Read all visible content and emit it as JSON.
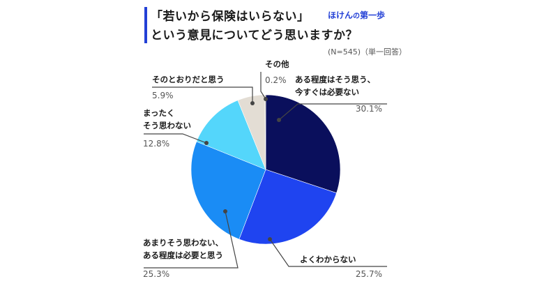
{
  "title": {
    "line1": "「若いから保険はいらない」",
    "line2": "という意見についてどう思いますか？"
  },
  "brand": {
    "name_a": "ほけん",
    "name_no": "の",
    "name_b": "第一歩"
  },
  "note": "(N=545)（単一回答）",
  "colors": {
    "accent": "#2340d6",
    "leader": "#444444"
  },
  "chart_data": {
    "type": "pie",
    "start": "12 o'clock",
    "direction": "clockwise",
    "slices": [
      {
        "label_lines": [
          "ある程度はそう思う、",
          "今すぐは必要ない"
        ],
        "value": 30.1,
        "value_text": "30.1%",
        "color": "#0a0f5c"
      },
      {
        "label_lines": [
          "よくわからない"
        ],
        "value": 25.7,
        "value_text": "25.7%",
        "color": "#1f44f0"
      },
      {
        "label_lines": [
          "あまりそう思わない、",
          "ある程度は必要と思う"
        ],
        "value": 25.3,
        "value_text": "25.3%",
        "color": "#1a8cf5"
      },
      {
        "label_lines": [
          "まったく",
          "そう思わない"
        ],
        "value": 12.8,
        "value_text": "12.8%",
        "color": "#54d6fb"
      },
      {
        "label_lines": [
          "そのとおりだと思う"
        ],
        "value": 5.9,
        "value_text": "5.9%",
        "color": "#e3ddd4"
      },
      {
        "label_lines": [
          "その他"
        ],
        "value": 0.2,
        "value_text": "0.2%",
        "color": "#bdb6aa"
      }
    ]
  }
}
